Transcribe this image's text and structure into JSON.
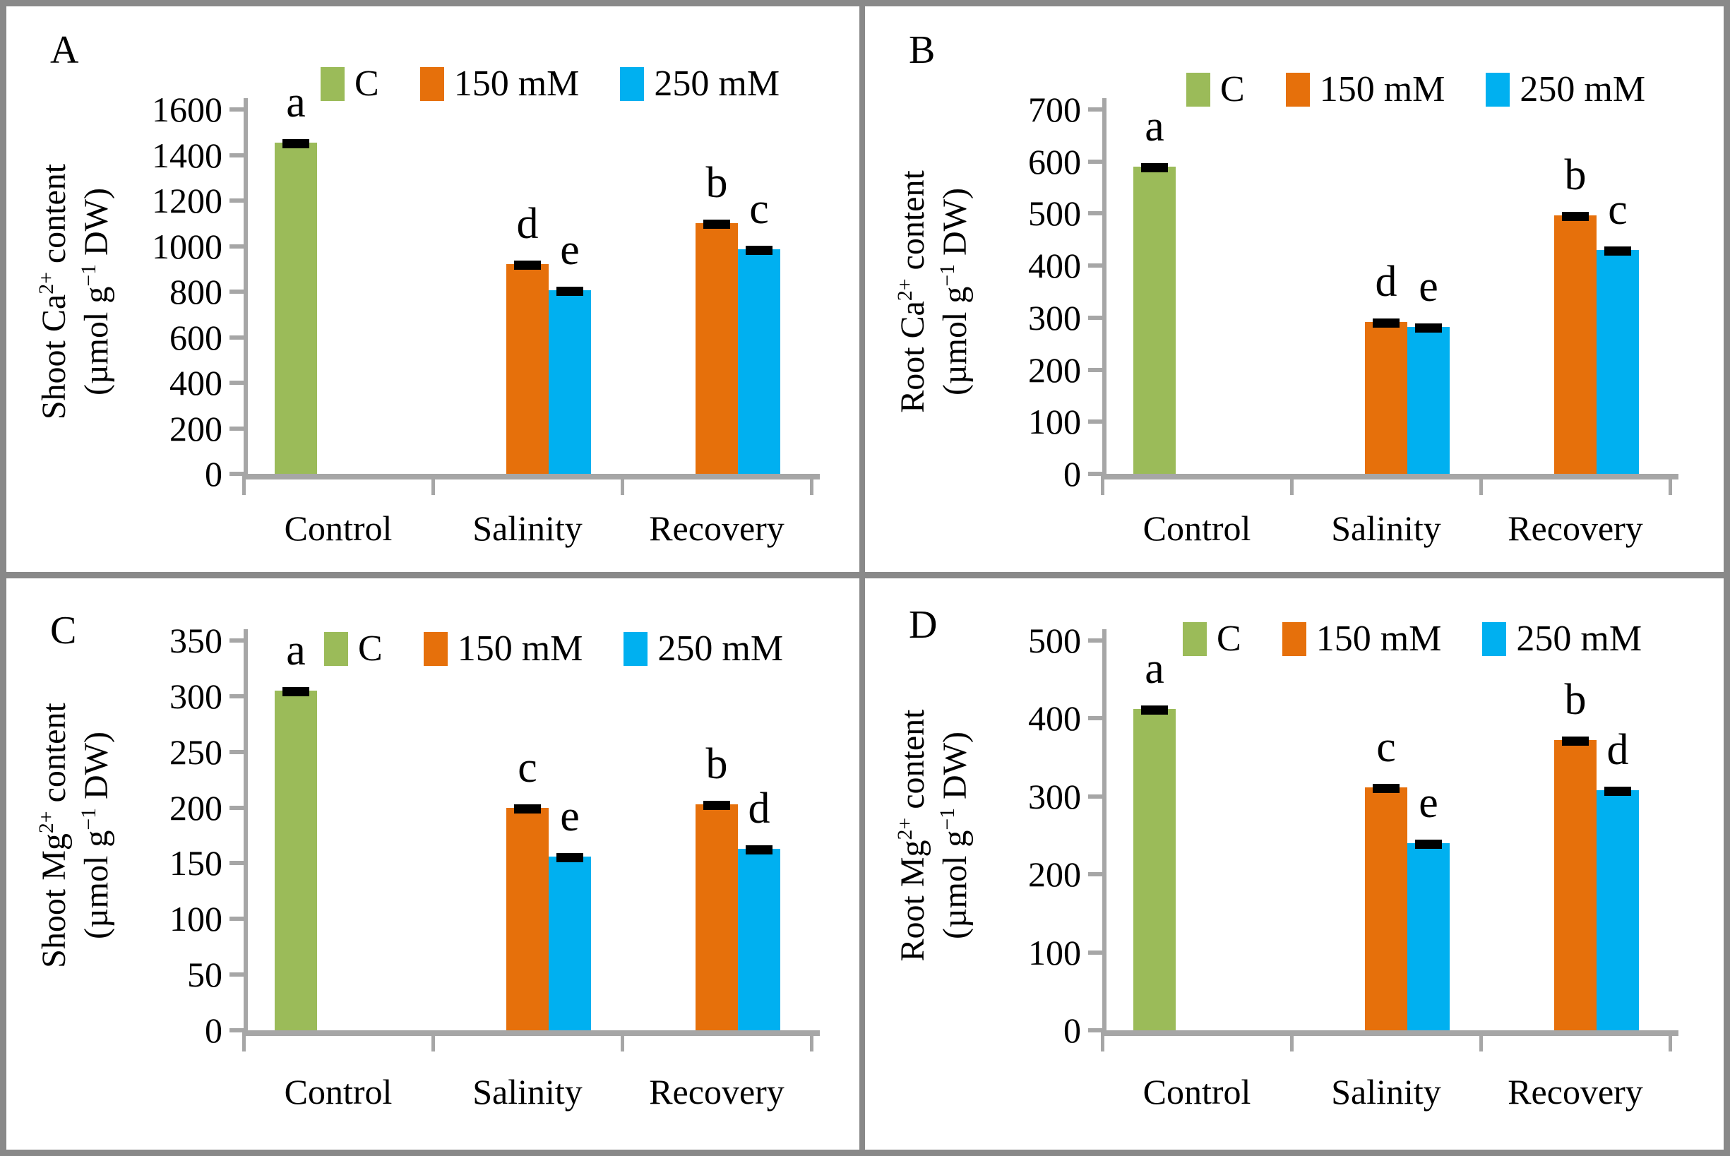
{
  "figure_title": "",
  "legend": {
    "items": [
      {
        "label": "C",
        "color": "#9BBB59"
      },
      {
        "label": "150 mM",
        "color": "#E6700B"
      },
      {
        "label": "250 mM",
        "color": "#00B0F0"
      }
    ]
  },
  "categories": [
    "Control",
    "Salinity",
    "Recovery"
  ],
  "axis_color": "#a6a6a6",
  "error_cap_color": "#000000",
  "chart_data": [
    {
      "type": "bar",
      "panel_label": "A",
      "ylabel": "Shoot Ca2+ content (µmol g−1 DW)",
      "ylabel_parts": {
        "l1_pre": "Shoot Ca",
        "l1_sup": "2+",
        "l1_post": " content",
        "l2_pre": "(µmol g",
        "l2_sup": "−1",
        "l2_post": " DW)"
      },
      "ylim": [
        0,
        1600
      ],
      "ytick_step": 200,
      "grid": false,
      "legend_position": "top",
      "categories": [
        "Control",
        "Salinity",
        "Recovery"
      ],
      "series": [
        {
          "name": "C",
          "values": [
            1455,
            null,
            null
          ],
          "letters": [
            "a",
            null,
            null
          ],
          "errors": [
            15,
            null,
            null
          ]
        },
        {
          "name": "150 mM",
          "values": [
            null,
            920,
            1100
          ],
          "letters": [
            null,
            "d",
            "b"
          ],
          "errors": [
            null,
            12,
            10
          ]
        },
        {
          "name": "250 mM",
          "values": [
            null,
            805,
            985
          ],
          "letters": [
            null,
            "e",
            "c"
          ],
          "errors": [
            null,
            10,
            10
          ]
        }
      ]
    },
    {
      "type": "bar",
      "panel_label": "B",
      "ylabel": "Root Ca2+ content (µmol g−1 DW)",
      "ylabel_parts": {
        "l1_pre": "Root Ca",
        "l1_sup": "2+",
        "l1_post": " content",
        "l2_pre": "(µmol g",
        "l2_sup": "−1",
        "l2_post": " DW)"
      },
      "ylim": [
        0,
        700
      ],
      "ytick_step": 100,
      "grid": false,
      "legend_position": "top",
      "categories": [
        "Control",
        "Salinity",
        "Recovery"
      ],
      "series": [
        {
          "name": "C",
          "values": [
            590,
            null,
            null
          ],
          "letters": [
            "a",
            null,
            null
          ],
          "errors": [
            8,
            null,
            null
          ]
        },
        {
          "name": "150 mM",
          "values": [
            null,
            292,
            497
          ],
          "letters": [
            null,
            "d",
            "b"
          ],
          "errors": [
            null,
            6,
            7
          ]
        },
        {
          "name": "250 mM",
          "values": [
            null,
            282,
            430
          ],
          "letters": [
            null,
            "e",
            "c"
          ],
          "errors": [
            null,
            5,
            6
          ]
        }
      ]
    },
    {
      "type": "bar",
      "panel_label": "C",
      "ylabel": "Shoot Mg2+ content (µmol g−1 DW)",
      "ylabel_parts": {
        "l1_pre": "Shoot Mg",
        "l1_sup": "2+",
        "l1_post": " content",
        "l2_pre": "(µmol g",
        "l2_sup": "−1",
        "l2_post": " DW)"
      },
      "ylim": [
        0,
        350
      ],
      "ytick_step": 50,
      "grid": false,
      "legend_position": "top",
      "categories": [
        "Control",
        "Salinity",
        "Recovery"
      ],
      "series": [
        {
          "name": "C",
          "values": [
            305,
            null,
            null
          ],
          "letters": [
            "a",
            null,
            null
          ],
          "errors": [
            4,
            null,
            null
          ]
        },
        {
          "name": "150 mM",
          "values": [
            null,
            200,
            203
          ],
          "letters": [
            null,
            "c",
            "b"
          ],
          "errors": [
            null,
            4,
            4
          ]
        },
        {
          "name": "250 mM",
          "values": [
            null,
            156,
            163
          ],
          "letters": [
            null,
            "e",
            "d"
          ],
          "errors": [
            null,
            3,
            3
          ]
        }
      ]
    },
    {
      "type": "bar",
      "panel_label": "D",
      "ylabel": "Root Mg2+ content (µmol g−1 DW)",
      "ylabel_parts": {
        "l1_pre": "Root Mg",
        "l1_sup": "2+",
        "l1_post": " content",
        "l2_pre": "(µmol g",
        "l2_sup": "−1",
        "l2_post": " DW)"
      },
      "ylim": [
        0,
        500
      ],
      "ytick_step": 100,
      "grid": false,
      "legend_position": "top",
      "categories": [
        "Control",
        "Salinity",
        "Recovery"
      ],
      "series": [
        {
          "name": "C",
          "values": [
            412,
            null,
            null
          ],
          "letters": [
            "a",
            null,
            null
          ],
          "errors": [
            5,
            null,
            null
          ]
        },
        {
          "name": "150 mM",
          "values": [
            null,
            312,
            372
          ],
          "letters": [
            null,
            "c",
            "b"
          ],
          "errors": [
            null,
            4,
            5
          ]
        },
        {
          "name": "250 mM",
          "values": [
            null,
            240,
            308
          ],
          "letters": [
            null,
            "e",
            "d"
          ],
          "errors": [
            null,
            4,
            4
          ]
        }
      ]
    }
  ]
}
